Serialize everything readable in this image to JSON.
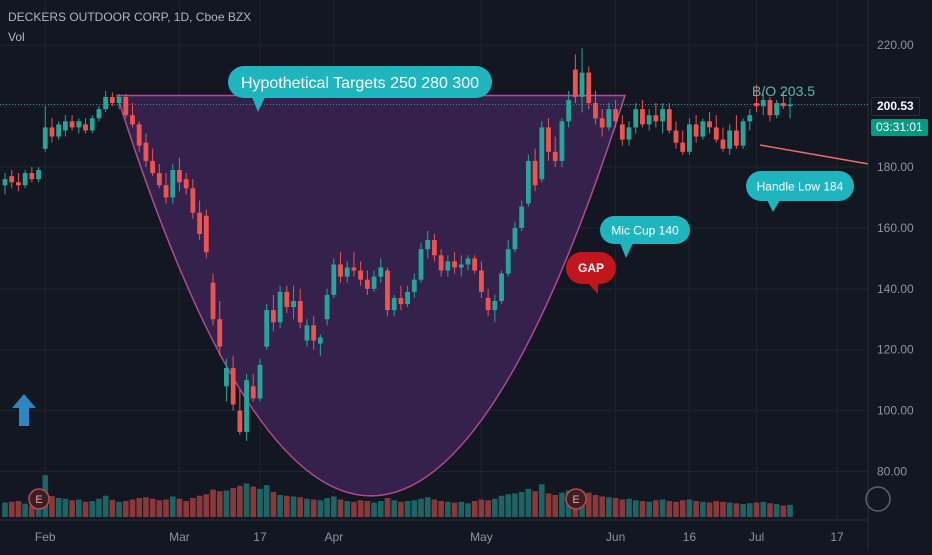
{
  "chart_title": "DECKERS OUTDOOR CORP, 1D, Cboe BZX",
  "vol_label": "Vol",
  "chart_data": {
    "type": "candlestick",
    "symbol": "DECKERS OUTDOOR CORP",
    "interval": "1D",
    "exchange": "Cboe BZX",
    "last_price": "200.53",
    "countdown": "03:31:01",
    "y_ticks": [
      "220.00",
      "200.00",
      "180.00",
      "160.00",
      "140.00",
      "120.00",
      "100.00",
      "80.00"
    ],
    "ylim": [
      62,
      230
    ],
    "x_ticks": [
      "Feb",
      "Mar",
      "17",
      "Apr",
      "May",
      "Jun",
      "16",
      "Jul",
      "17"
    ],
    "candles": [
      {
        "o": 174,
        "h": 178,
        "l": 171,
        "c": 176
      },
      {
        "o": 177,
        "h": 179,
        "l": 173,
        "c": 175
      },
      {
        "o": 175,
        "h": 178,
        "l": 172,
        "c": 174
      },
      {
        "o": 174,
        "h": 179,
        "l": 173,
        "c": 178
      },
      {
        "o": 178,
        "h": 180,
        "l": 175,
        "c": 176
      },
      {
        "o": 176,
        "h": 180,
        "l": 175,
        "c": 179
      },
      {
        "o": 186,
        "h": 200,
        "l": 185,
        "c": 193
      },
      {
        "o": 193,
        "h": 196,
        "l": 188,
        "c": 190
      },
      {
        "o": 190,
        "h": 195,
        "l": 189,
        "c": 194
      },
      {
        "o": 192,
        "h": 197,
        "l": 190,
        "c": 195
      },
      {
        "o": 195,
        "h": 197,
        "l": 192,
        "c": 193
      },
      {
        "o": 193,
        "h": 196,
        "l": 191,
        "c": 195
      },
      {
        "o": 194,
        "h": 196,
        "l": 191,
        "c": 192
      },
      {
        "o": 192,
        "h": 197,
        "l": 191,
        "c": 196
      },
      {
        "o": 196,
        "h": 200,
        "l": 195,
        "c": 199
      },
      {
        "o": 199,
        "h": 205,
        "l": 198,
        "c": 203
      },
      {
        "o": 203,
        "h": 204.5,
        "l": 200,
        "c": 201
      },
      {
        "o": 201,
        "h": 204,
        "l": 199,
        "c": 203
      },
      {
        "o": 203,
        "h": 204,
        "l": 196,
        "c": 197
      },
      {
        "o": 197,
        "h": 201,
        "l": 193,
        "c": 194
      },
      {
        "o": 194,
        "h": 195,
        "l": 185,
        "c": 187
      },
      {
        "o": 188,
        "h": 191,
        "l": 180,
        "c": 182
      },
      {
        "o": 182,
        "h": 186,
        "l": 177,
        "c": 178
      },
      {
        "o": 178,
        "h": 181,
        "l": 173,
        "c": 174
      },
      {
        "o": 174,
        "h": 178,
        "l": 168,
        "c": 170
      },
      {
        "o": 170,
        "h": 181,
        "l": 168,
        "c": 179
      },
      {
        "o": 179,
        "h": 183,
        "l": 172,
        "c": 175
      },
      {
        "o": 176,
        "h": 178,
        "l": 171,
        "c": 173
      },
      {
        "o": 173,
        "h": 176,
        "l": 163,
        "c": 165
      },
      {
        "o": 165,
        "h": 169,
        "l": 156,
        "c": 158
      },
      {
        "o": 164,
        "h": 166,
        "l": 150,
        "c": 152
      },
      {
        "o": 142,
        "h": 145,
        "l": 128,
        "c": 130
      },
      {
        "o": 130,
        "h": 136,
        "l": 118,
        "c": 121
      },
      {
        "o": 108,
        "h": 117,
        "l": 103,
        "c": 114
      },
      {
        "o": 114,
        "h": 118,
        "l": 100,
        "c": 102
      },
      {
        "o": 100,
        "h": 107,
        "l": 92,
        "c": 93
      },
      {
        "o": 93,
        "h": 112,
        "l": 90,
        "c": 110
      },
      {
        "o": 108,
        "h": 112,
        "l": 103,
        "c": 104
      },
      {
        "o": 104,
        "h": 117,
        "l": 103,
        "c": 115
      },
      {
        "o": 121,
        "h": 135,
        "l": 120,
        "c": 133
      },
      {
        "o": 133,
        "h": 138,
        "l": 126,
        "c": 129
      },
      {
        "o": 129,
        "h": 141,
        "l": 127,
        "c": 139
      },
      {
        "o": 139,
        "h": 141,
        "l": 132,
        "c": 134
      },
      {
        "o": 134,
        "h": 141,
        "l": 130,
        "c": 136
      },
      {
        "o": 136,
        "h": 140,
        "l": 127,
        "c": 129
      },
      {
        "o": 123,
        "h": 130,
        "l": 121,
        "c": 128
      },
      {
        "o": 128,
        "h": 131,
        "l": 120,
        "c": 123
      },
      {
        "o": 122,
        "h": 125,
        "l": 118,
        "c": 124
      },
      {
        "o": 130,
        "h": 140,
        "l": 128,
        "c": 138
      },
      {
        "o": 138,
        "h": 150,
        "l": 137,
        "c": 148
      },
      {
        "o": 148,
        "h": 152,
        "l": 142,
        "c": 144
      },
      {
        "o": 144,
        "h": 149,
        "l": 142,
        "c": 147
      },
      {
        "o": 147,
        "h": 152,
        "l": 144,
        "c": 146
      },
      {
        "o": 146,
        "h": 149,
        "l": 141,
        "c": 143
      },
      {
        "o": 143,
        "h": 146,
        "l": 138,
        "c": 140
      },
      {
        "o": 140,
        "h": 146,
        "l": 139,
        "c": 144
      },
      {
        "o": 144,
        "h": 150,
        "l": 142,
        "c": 147
      },
      {
        "o": 146,
        "h": 147,
        "l": 131,
        "c": 133
      },
      {
        "o": 133,
        "h": 138,
        "l": 131,
        "c": 137
      },
      {
        "o": 137,
        "h": 141,
        "l": 133,
        "c": 135
      },
      {
        "o": 135,
        "h": 141,
        "l": 134,
        "c": 139
      },
      {
        "o": 139,
        "h": 145,
        "l": 137,
        "c": 143
      },
      {
        "o": 143,
        "h": 155,
        "l": 142,
        "c": 153
      },
      {
        "o": 153,
        "h": 159,
        "l": 150,
        "c": 156
      },
      {
        "o": 156,
        "h": 158,
        "l": 149,
        "c": 151
      },
      {
        "o": 151,
        "h": 153,
        "l": 144,
        "c": 146
      },
      {
        "o": 146,
        "h": 151,
        "l": 144,
        "c": 149
      },
      {
        "o": 149,
        "h": 152,
        "l": 145,
        "c": 147
      },
      {
        "o": 147,
        "h": 151,
        "l": 144,
        "c": 148
      },
      {
        "o": 148,
        "h": 151,
        "l": 146,
        "c": 150
      },
      {
        "o": 150,
        "h": 151,
        "l": 145,
        "c": 146
      },
      {
        "o": 146,
        "h": 149,
        "l": 137,
        "c": 139
      },
      {
        "o": 137,
        "h": 140,
        "l": 131,
        "c": 133
      },
      {
        "o": 133,
        "h": 138,
        "l": 129,
        "c": 136
      },
      {
        "o": 136,
        "h": 146,
        "l": 135,
        "c": 145
      },
      {
        "o": 145,
        "h": 156,
        "l": 144,
        "c": 153
      },
      {
        "o": 153,
        "h": 162,
        "l": 152,
        "c": 160
      },
      {
        "o": 160,
        "h": 169,
        "l": 159,
        "c": 167
      },
      {
        "o": 168,
        "h": 184,
        "l": 167,
        "c": 182
      },
      {
        "o": 182,
        "h": 186,
        "l": 172,
        "c": 174
      },
      {
        "o": 176,
        "h": 195,
        "l": 175,
        "c": 193
      },
      {
        "o": 193,
        "h": 196,
        "l": 182,
        "c": 185
      },
      {
        "o": 185,
        "h": 190,
        "l": 180,
        "c": 182
      },
      {
        "o": 182,
        "h": 196,
        "l": 180,
        "c": 195
      },
      {
        "o": 195,
        "h": 205,
        "l": 193,
        "c": 202
      },
      {
        "o": 212,
        "h": 217,
        "l": 201,
        "c": 203
      },
      {
        "o": 203,
        "h": 219,
        "l": 198,
        "c": 211
      },
      {
        "o": 211,
        "h": 213,
        "l": 199,
        "c": 201
      },
      {
        "o": 201,
        "h": 205,
        "l": 194,
        "c": 196
      },
      {
        "o": 196,
        "h": 199,
        "l": 190,
        "c": 193
      },
      {
        "o": 193,
        "h": 201,
        "l": 192,
        "c": 199
      },
      {
        "o": 199,
        "h": 202,
        "l": 193,
        "c": 195
      },
      {
        "o": 194,
        "h": 197,
        "l": 187,
        "c": 189
      },
      {
        "o": 189,
        "h": 195,
        "l": 187,
        "c": 193
      },
      {
        "o": 193,
        "h": 201,
        "l": 191,
        "c": 199
      },
      {
        "o": 199,
        "h": 202,
        "l": 193,
        "c": 194
      },
      {
        "o": 194,
        "h": 199,
        "l": 192,
        "c": 197
      },
      {
        "o": 197,
        "h": 201,
        "l": 193,
        "c": 195
      },
      {
        "o": 195,
        "h": 201,
        "l": 191,
        "c": 199
      },
      {
        "o": 199,
        "h": 201,
        "l": 191,
        "c": 192
      },
      {
        "o": 192,
        "h": 195,
        "l": 186,
        "c": 188
      },
      {
        "o": 188,
        "h": 192,
        "l": 184,
        "c": 185
      },
      {
        "o": 185,
        "h": 196,
        "l": 184,
        "c": 194
      },
      {
        "o": 194,
        "h": 197,
        "l": 188,
        "c": 190
      },
      {
        "o": 190,
        "h": 196,
        "l": 189,
        "c": 195
      },
      {
        "o": 195,
        "h": 198,
        "l": 191,
        "c": 193
      },
      {
        "o": 193,
        "h": 197,
        "l": 188,
        "c": 189
      },
      {
        "o": 189,
        "h": 193,
        "l": 185,
        "c": 186
      },
      {
        "o": 186,
        "h": 194,
        "l": 184,
        "c": 192
      },
      {
        "o": 192,
        "h": 197,
        "l": 186,
        "c": 187
      },
      {
        "o": 187,
        "h": 196,
        "l": 186,
        "c": 195
      },
      {
        "o": 195,
        "h": 199,
        "l": 192,
        "c": 197
      },
      {
        "o": 201,
        "h": 207,
        "l": 198,
        "c": 200
      },
      {
        "o": 200,
        "h": 204,
        "l": 197,
        "c": 202
      },
      {
        "o": 202,
        "h": 203,
        "l": 195,
        "c": 197
      },
      {
        "o": 197,
        "h": 202,
        "l": 196,
        "c": 201
      },
      {
        "o": 201,
        "h": 205,
        "l": 199,
        "c": 200
      },
      {
        "o": 200,
        "h": 203,
        "l": 196,
        "c": 200.53
      }
    ],
    "volume_heights": [
      38,
      40,
      42,
      35,
      30,
      33,
      110,
      55,
      50,
      48,
      44,
      46,
      40,
      42,
      48,
      56,
      45,
      40,
      42,
      46,
      50,
      52,
      48,
      44,
      46,
      54,
      48,
      42,
      50,
      56,
      60,
      72,
      68,
      70,
      76,
      82,
      88,
      80,
      74,
      84,
      66,
      58,
      56,
      54,
      52,
      48,
      46,
      44,
      50,
      54,
      46,
      42,
      40,
      44,
      42,
      38,
      42,
      50,
      44,
      40,
      42,
      44,
      48,
      52,
      46,
      42,
      40,
      38,
      40,
      36,
      42,
      46,
      44,
      48,
      56,
      60,
      62,
      66,
      74,
      68,
      86,
      62,
      58,
      64,
      70,
      72,
      68,
      64,
      58,
      54,
      52,
      50,
      46,
      48,
      44,
      42,
      40,
      44,
      46,
      42,
      40,
      44,
      46,
      42,
      40,
      38,
      42,
      40,
      38,
      36,
      34,
      36,
      38,
      40,
      36,
      34,
      30,
      32
    ],
    "resistance": 203.5,
    "handle_line": [
      {
        "x": 120,
        "y": 190.5
      },
      {
        "x": 152,
        "y": 183
      }
    ],
    "cup_bottom": 72,
    "annotations": [
      {
        "name": "targets",
        "text": "Hypothetical Targets  250  280  300"
      },
      {
        "name": "mic-cup",
        "text": "Mic Cup 140"
      },
      {
        "name": "gap",
        "text": "GAP"
      },
      {
        "name": "handle-low",
        "text": "Handle Low 184"
      },
      {
        "name": "breakout",
        "text": "B/O 203.5"
      }
    ],
    "earnings_marker": "E",
    "colors": {
      "up": "#26a69a",
      "down": "#ef5350",
      "background": "#131722",
      "cup_fill": "#3b2454",
      "callout": "#1fb5bf",
      "gap": "#c3161c",
      "line": "#f26b6b",
      "arrow": "#2e86c1"
    }
  }
}
